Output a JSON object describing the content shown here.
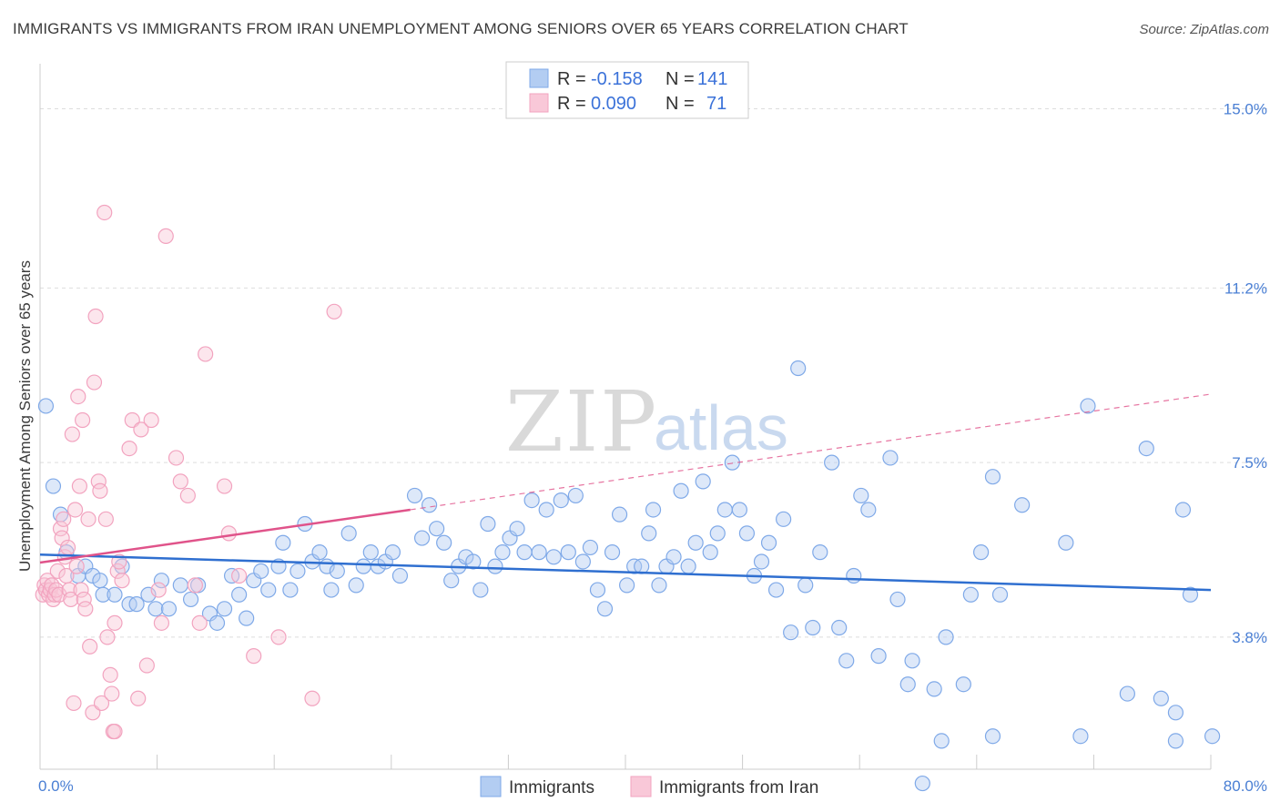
{
  "title": "IMMIGRANTS VS IMMIGRANTS FROM IRAN UNEMPLOYMENT AMONG SENIORS OVER 65 YEARS CORRELATION CHART",
  "source": "Source: ZipAtlas.com",
  "watermark": {
    "zip": "ZIP",
    "atlas": "atlas"
  },
  "legend_top": [
    {
      "r_label": "R = ",
      "r_value": "-0.158",
      "n_label": "N = ",
      "n_value": "141"
    },
    {
      "r_label": "R = ",
      "r_value": "0.090",
      "n_label": "N = ",
      "n_value": "71"
    }
  ],
  "chart_data": {
    "type": "scatter",
    "title": "IMMIGRANTS VS IMMIGRANTS FROM IRAN UNEMPLOYMENT AMONG SENIORS OVER 65 YEARS CORRELATION CHART",
    "xlabel": "",
    "ylabel": "Unemployment Among Seniors over 65 years",
    "xlim": [
      0,
      80
    ],
    "ylim": [
      1.0,
      15.8
    ],
    "x_tick_labels": [
      {
        "value": 0,
        "label": "0.0%"
      },
      {
        "value": 80,
        "label": "80.0%"
      }
    ],
    "y_tick_labels": [
      {
        "value": 3.8,
        "label": "3.8%"
      },
      {
        "value": 7.5,
        "label": "7.5%"
      },
      {
        "value": 11.2,
        "label": "11.2%"
      },
      {
        "value": 15.0,
        "label": "15.0%"
      }
    ],
    "grid": "horizontal dashed",
    "legend_position": "top-center and bottom-center",
    "series": [
      {
        "name": "Immigrants",
        "color": "#7fa9e8",
        "line_color": "#2f6fd0",
        "r": -0.158,
        "n": 141,
        "trend": {
          "x": [
            0,
            80
          ],
          "y": [
            5.55,
            4.8
          ]
        },
        "points": [
          [
            0.4,
            8.7
          ],
          [
            0.9,
            7.0
          ],
          [
            1.4,
            6.4
          ],
          [
            1.8,
            5.6
          ],
          [
            2.6,
            5.1
          ],
          [
            3.1,
            5.3
          ],
          [
            3.6,
            5.1
          ],
          [
            4.1,
            5.0
          ],
          [
            4.3,
            4.7
          ],
          [
            5.1,
            4.7
          ],
          [
            5.6,
            5.3
          ],
          [
            6.1,
            4.5
          ],
          [
            6.6,
            4.5
          ],
          [
            7.4,
            4.7
          ],
          [
            7.9,
            4.4
          ],
          [
            8.3,
            5.0
          ],
          [
            8.8,
            4.4
          ],
          [
            9.6,
            4.9
          ],
          [
            10.3,
            4.6
          ],
          [
            10.8,
            4.9
          ],
          [
            11.6,
            4.3
          ],
          [
            12.1,
            4.1
          ],
          [
            12.6,
            4.4
          ],
          [
            13.1,
            5.1
          ],
          [
            13.6,
            4.7
          ],
          [
            14.1,
            4.2
          ],
          [
            14.6,
            5.0
          ],
          [
            15.1,
            5.2
          ],
          [
            15.6,
            4.8
          ],
          [
            16.3,
            5.3
          ],
          [
            16.6,
            5.8
          ],
          [
            17.1,
            4.8
          ],
          [
            17.6,
            5.2
          ],
          [
            18.1,
            6.2
          ],
          [
            18.6,
            5.4
          ],
          [
            19.1,
            5.6
          ],
          [
            19.6,
            5.3
          ],
          [
            19.9,
            4.8
          ],
          [
            20.3,
            5.2
          ],
          [
            21.1,
            6.0
          ],
          [
            21.6,
            4.9
          ],
          [
            22.1,
            5.3
          ],
          [
            22.6,
            5.6
          ],
          [
            23.1,
            5.3
          ],
          [
            23.6,
            5.4
          ],
          [
            24.1,
            5.6
          ],
          [
            24.6,
            5.1
          ],
          [
            25.6,
            6.8
          ],
          [
            26.1,
            5.9
          ],
          [
            26.6,
            6.6
          ],
          [
            27.1,
            6.1
          ],
          [
            27.6,
            5.8
          ],
          [
            28.1,
            5.0
          ],
          [
            28.6,
            5.3
          ],
          [
            29.1,
            5.5
          ],
          [
            29.6,
            5.4
          ],
          [
            30.1,
            4.8
          ],
          [
            30.6,
            6.2
          ],
          [
            31.1,
            5.3
          ],
          [
            31.6,
            5.6
          ],
          [
            32.1,
            5.9
          ],
          [
            32.6,
            6.1
          ],
          [
            33.1,
            5.6
          ],
          [
            33.6,
            6.7
          ],
          [
            34.1,
            5.6
          ],
          [
            34.6,
            6.5
          ],
          [
            35.1,
            5.5
          ],
          [
            35.6,
            6.7
          ],
          [
            36.1,
            5.6
          ],
          [
            36.6,
            6.8
          ],
          [
            37.1,
            5.4
          ],
          [
            37.6,
            5.7
          ],
          [
            38.1,
            4.8
          ],
          [
            38.6,
            4.4
          ],
          [
            39.1,
            5.6
          ],
          [
            39.6,
            6.4
          ],
          [
            40.1,
            4.9
          ],
          [
            40.6,
            5.3
          ],
          [
            41.1,
            5.3
          ],
          [
            41.6,
            6.0
          ],
          [
            41.9,
            6.5
          ],
          [
            42.3,
            4.9
          ],
          [
            42.8,
            5.3
          ],
          [
            43.3,
            5.5
          ],
          [
            43.8,
            6.9
          ],
          [
            44.3,
            5.3
          ],
          [
            44.8,
            5.8
          ],
          [
            45.3,
            7.1
          ],
          [
            45.8,
            5.6
          ],
          [
            46.3,
            6.0
          ],
          [
            46.8,
            6.5
          ],
          [
            47.3,
            7.5
          ],
          [
            47.8,
            6.5
          ],
          [
            48.3,
            6.0
          ],
          [
            48.8,
            5.1
          ],
          [
            49.3,
            5.4
          ],
          [
            49.8,
            5.8
          ],
          [
            50.3,
            4.8
          ],
          [
            50.8,
            6.3
          ],
          [
            51.3,
            3.9
          ],
          [
            51.8,
            9.5
          ],
          [
            52.3,
            4.9
          ],
          [
            52.8,
            4.0
          ],
          [
            53.3,
            5.6
          ],
          [
            54.1,
            7.5
          ],
          [
            54.6,
            4.0
          ],
          [
            55.1,
            3.3
          ],
          [
            55.6,
            5.1
          ],
          [
            56.1,
            6.8
          ],
          [
            56.6,
            6.5
          ],
          [
            57.3,
            3.4
          ],
          [
            58.1,
            7.6
          ],
          [
            58.6,
            4.6
          ],
          [
            59.3,
            2.8
          ],
          [
            59.6,
            3.3
          ],
          [
            60.3,
            0.7
          ],
          [
            61.1,
            2.7
          ],
          [
            61.6,
            1.6
          ],
          [
            61.9,
            3.8
          ],
          [
            63.1,
            2.8
          ],
          [
            63.6,
            4.7
          ],
          [
            64.3,
            5.6
          ],
          [
            65.1,
            7.2
          ],
          [
            65.6,
            4.7
          ],
          [
            67.1,
            6.6
          ],
          [
            70.1,
            5.8
          ],
          [
            71.6,
            8.7
          ],
          [
            74.3,
            2.6
          ],
          [
            75.6,
            7.8
          ],
          [
            71.1,
            1.7
          ],
          [
            76.6,
            2.5
          ],
          [
            77.6,
            1.6
          ],
          [
            78.6,
            4.7
          ],
          [
            78.1,
            6.5
          ],
          [
            77.6,
            2.2
          ],
          [
            80.1,
            1.7
          ],
          [
            65.1,
            1.7
          ]
        ]
      },
      {
        "name": "Immigrants from Iran",
        "color": "#f2a3bf",
        "line_color": "#e0538a",
        "r": 0.09,
        "n": 71,
        "trend": {
          "x": [
            0,
            25.3
          ],
          "y": [
            5.38,
            6.5
          ]
        },
        "trend_dashed": {
          "x": [
            25.3,
            80
          ],
          "y": [
            6.5,
            8.95
          ]
        },
        "points": [
          [
            0.2,
            4.7
          ],
          [
            0.3,
            4.9
          ],
          [
            0.4,
            4.8
          ],
          [
            0.5,
            5.0
          ],
          [
            0.6,
            4.7
          ],
          [
            0.7,
            4.8
          ],
          [
            0.8,
            4.9
          ],
          [
            0.9,
            4.6
          ],
          [
            1.0,
            4.7
          ],
          [
            1.1,
            4.8
          ],
          [
            1.2,
            5.2
          ],
          [
            1.3,
            4.7
          ],
          [
            1.4,
            6.1
          ],
          [
            1.5,
            5.9
          ],
          [
            1.6,
            6.3
          ],
          [
            1.7,
            5.5
          ],
          [
            1.8,
            5.1
          ],
          [
            1.9,
            5.7
          ],
          [
            2.0,
            4.8
          ],
          [
            2.1,
            4.6
          ],
          [
            2.2,
            8.1
          ],
          [
            2.4,
            6.5
          ],
          [
            2.5,
            5.3
          ],
          [
            2.6,
            8.9
          ],
          [
            2.7,
            7.0
          ],
          [
            2.8,
            4.8
          ],
          [
            2.9,
            8.4
          ],
          [
            3.0,
            4.6
          ],
          [
            3.1,
            4.4
          ],
          [
            3.3,
            6.3
          ],
          [
            3.4,
            3.6
          ],
          [
            3.6,
            2.2
          ],
          [
            3.7,
            9.2
          ],
          [
            3.8,
            10.6
          ],
          [
            4.0,
            7.1
          ],
          [
            4.1,
            6.9
          ],
          [
            4.2,
            2.4
          ],
          [
            4.4,
            12.8
          ],
          [
            4.5,
            6.3
          ],
          [
            4.6,
            3.8
          ],
          [
            4.8,
            3.0
          ],
          [
            4.9,
            2.6
          ],
          [
            5.0,
            1.8
          ],
          [
            5.1,
            4.1
          ],
          [
            5.3,
            5.2
          ],
          [
            5.4,
            5.4
          ],
          [
            5.6,
            5.0
          ],
          [
            6.1,
            7.8
          ],
          [
            6.3,
            8.4
          ],
          [
            6.7,
            2.5
          ],
          [
            6.9,
            8.2
          ],
          [
            7.3,
            3.2
          ],
          [
            7.6,
            8.4
          ],
          [
            8.1,
            4.8
          ],
          [
            8.3,
            4.1
          ],
          [
            8.6,
            12.3
          ],
          [
            9.3,
            7.6
          ],
          [
            9.6,
            7.1
          ],
          [
            10.1,
            6.8
          ],
          [
            10.6,
            4.9
          ],
          [
            10.9,
            4.1
          ],
          [
            11.3,
            9.8
          ],
          [
            12.6,
            7.0
          ],
          [
            12.9,
            6.0
          ],
          [
            13.6,
            5.1
          ],
          [
            14.6,
            3.4
          ],
          [
            16.3,
            3.8
          ],
          [
            18.6,
            2.5
          ],
          [
            20.1,
            10.7
          ],
          [
            5.1,
            1.8
          ],
          [
            2.3,
            2.4
          ]
        ]
      }
    ]
  }
}
